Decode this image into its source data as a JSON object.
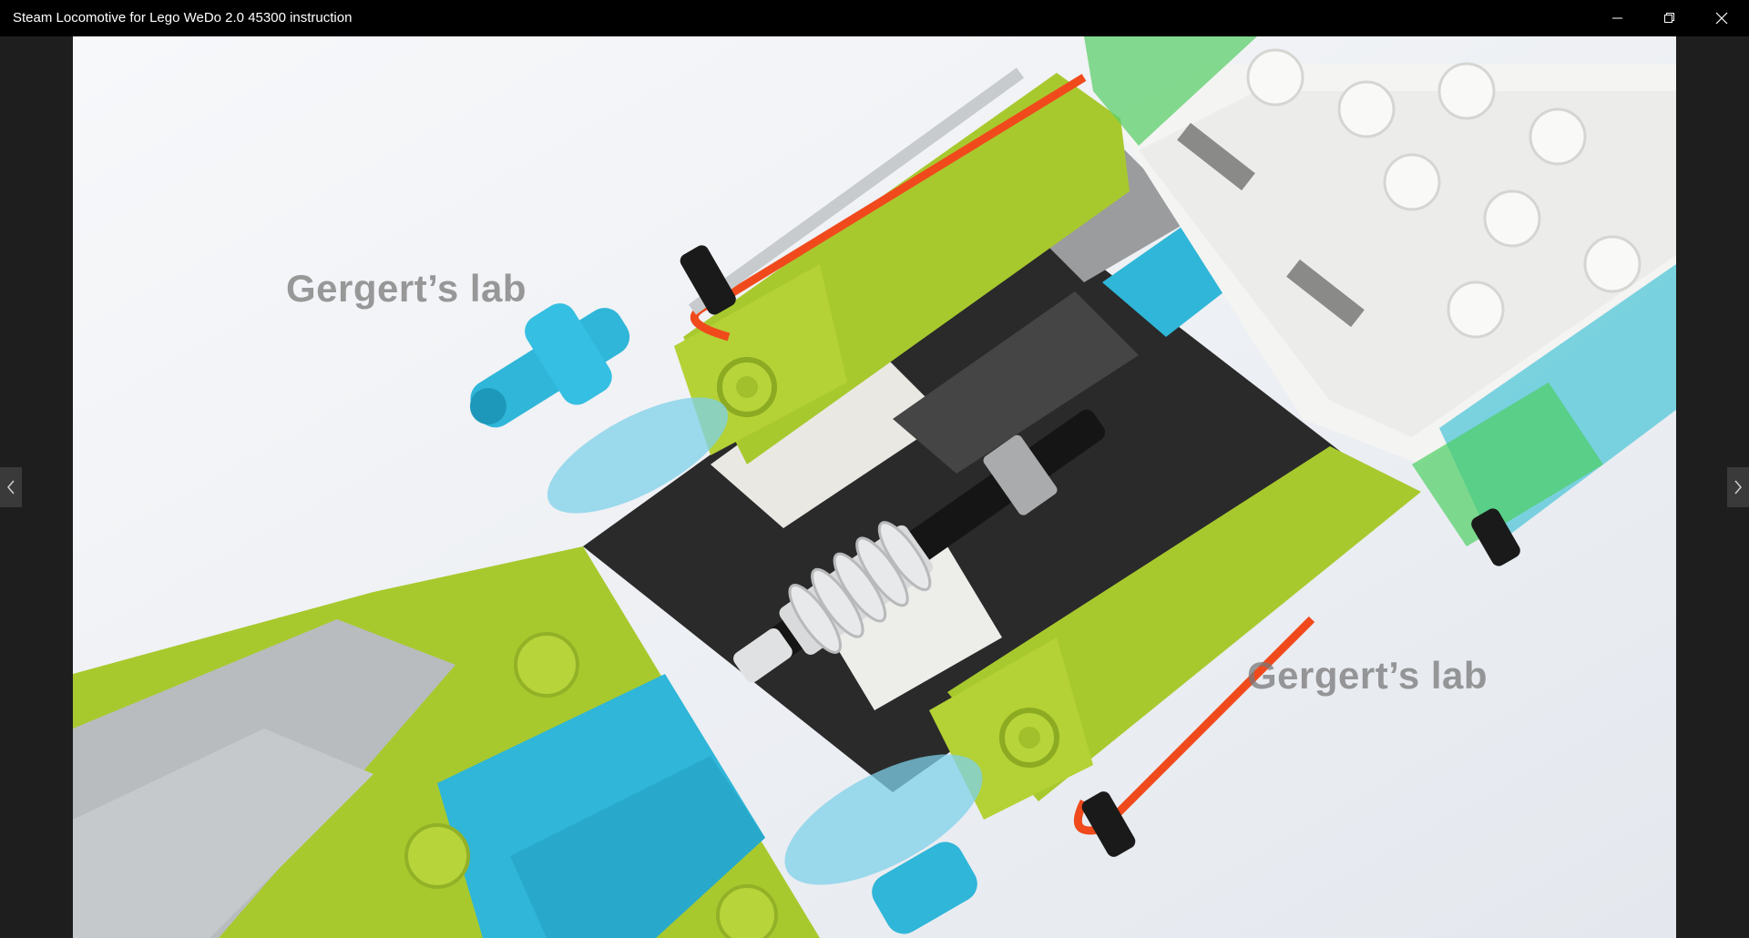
{
  "window": {
    "title": "Steam Locomotive for Lego WeDo 2.0 45300 instruction",
    "controls": {
      "minimize_icon": "minimize-icon",
      "restore_icon": "restore-icon",
      "close_icon": "close-icon"
    }
  },
  "viewer": {
    "watermark_text_1": "Gergert’s lab",
    "watermark_text_2": "Gergert’s lab",
    "prev_icon": "chevron-left-icon",
    "next_icon": "chevron-right-icon"
  },
  "colors": {
    "titlebar": "#000000",
    "viewer_background": "#1e1e1e",
    "lime": "#a8c92e",
    "azure": "#2fb6d8",
    "light_gray": "#bfc3c6",
    "white": "#f2f2f0",
    "black": "#1b1b1b",
    "orange_wire": "#f04a1c",
    "trans_light_blue": "#6ec9e6"
  }
}
